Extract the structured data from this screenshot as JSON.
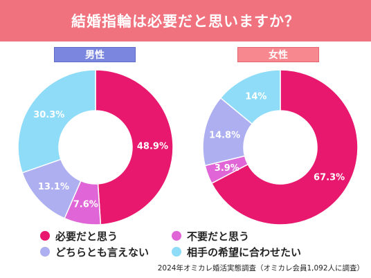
{
  "title": "結婚指輪は必要だと思いますか？",
  "colors": {
    "banner": "#f0727e",
    "必要だと思う": "#e8186f",
    "不要だと思う": "#e065d6",
    "どちらとも言えない": "#adaff0",
    "相手の希望に合わせたい": "#8fdcf8"
  },
  "legend": [
    {
      "label": "必要だと思う",
      "color": "#e8186f"
    },
    {
      "label": "不要だと思う",
      "color": "#e065d6"
    },
    {
      "label": "どちらとも言えない",
      "color": "#adaff0"
    },
    {
      "label": "相手の希望に合わせたい",
      "color": "#8fdcf8"
    }
  ],
  "source": "2024年オミカレ婚活実態調査（オミカレ会員1,092人に調査）",
  "chart_data": [
    {
      "type": "pie",
      "title": "男性",
      "categories": [
        "必要だと思う",
        "不要だと思う",
        "どちらとも言えない",
        "相手の希望に合わせたい"
      ],
      "values": [
        48.9,
        7.6,
        13.1,
        30.3
      ],
      "labels": [
        "48.9%",
        "7.6%",
        "13.1%",
        "30.3%"
      ],
      "colors": [
        "#e8186f",
        "#e065d6",
        "#adaff0",
        "#8fdcf8"
      ],
      "label_color": "#7b86de"
    },
    {
      "type": "pie",
      "title": "女性",
      "categories": [
        "必要だと思う",
        "不要だと思う",
        "どちらとも言えない",
        "相手の希望に合わせたい"
      ],
      "values": [
        67.3,
        3.9,
        14.8,
        14
      ],
      "labels": [
        "67.3%",
        "3.9%",
        "14.8%",
        "14%"
      ],
      "colors": [
        "#e8186f",
        "#e065d6",
        "#adaff0",
        "#8fdcf8"
      ],
      "label_color": "#f7888f"
    }
  ]
}
